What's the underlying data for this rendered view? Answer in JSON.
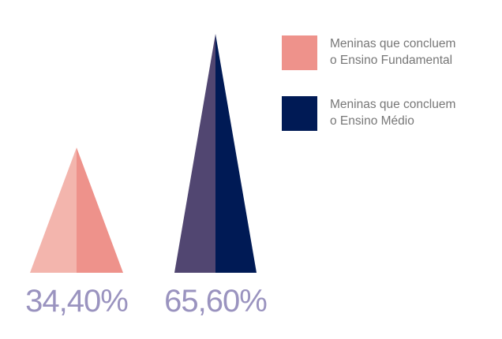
{
  "chart_data": {
    "type": "bar",
    "title": "",
    "xlabel": "",
    "ylabel": "",
    "ylim": [
      0,
      100
    ],
    "grid": false,
    "legend_position": "top-right",
    "categories": [
      "Meninas que concluem o Ensino Fundamental",
      "Meninas que concluem o Ensino Médio"
    ],
    "values": [
      34.4,
      65.6
    ],
    "value_labels": [
      "34,40%",
      "65,60%"
    ],
    "colors": [
      {
        "light": "#f3b5ad",
        "dark": "#ee928b"
      },
      {
        "light": "#514671",
        "dark": "#001a55"
      }
    ],
    "legend": [
      {
        "line1": "Meninas que concluem",
        "line2": "o Ensino Fundamental",
        "color": "#ee928b"
      },
      {
        "line1": "Meninas que concluem",
        "line2": "o Ensino Médio",
        "color": "#001a55"
      }
    ]
  }
}
